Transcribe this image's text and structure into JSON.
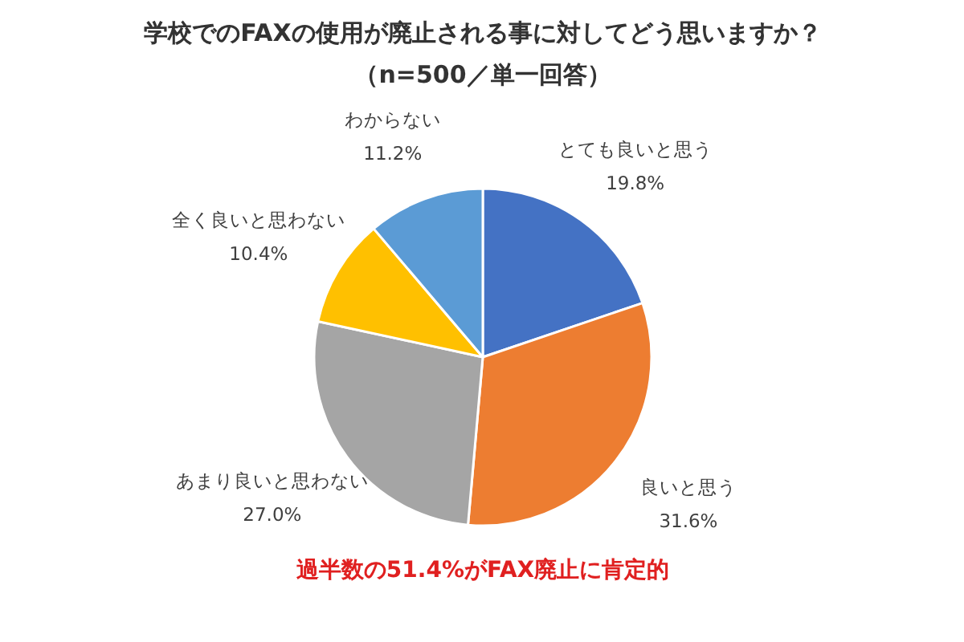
{
  "chart_data": {
    "type": "pie",
    "title": "学校でのFAXの使用が廃止される事に対してどう思いますか？",
    "subtitle": "（n=500／単一回答）",
    "categories": [
      "とても良いと思う",
      "良いと思う",
      "あまり良いと思わない",
      "全く良いと思わない",
      "わからない"
    ],
    "values": [
      19.8,
      31.6,
      27.0,
      10.4,
      11.2
    ],
    "value_labels": [
      "19.8%",
      "31.6%",
      "27.0%",
      "10.4%",
      "11.2%"
    ],
    "colors": [
      "#4472c4",
      "#ed7d31",
      "#a5a5a5",
      "#ffc000",
      "#5b9bd5"
    ],
    "annotations": [
      "過半数の51.4%がFAX廃止に肯定的"
    ]
  }
}
